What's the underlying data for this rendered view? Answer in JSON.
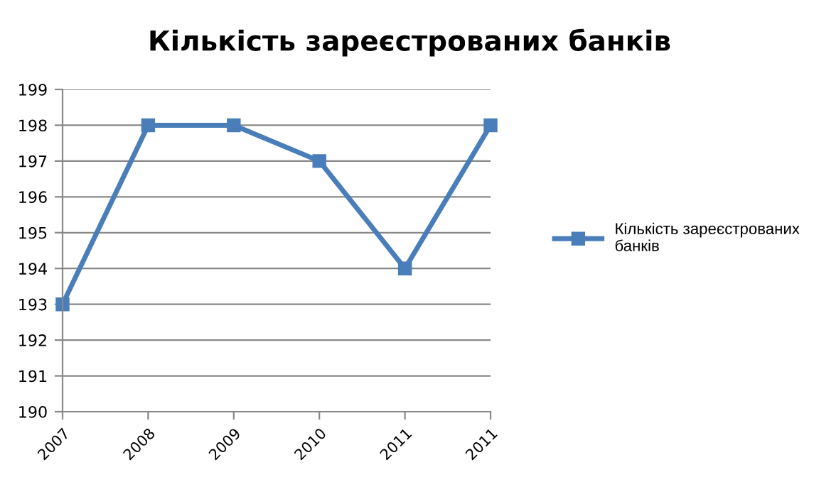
{
  "chart_data": {
    "type": "line",
    "title": "Кількість зареєстрованих банків",
    "categories": [
      "2007",
      "2008",
      "2009",
      "2010",
      "2011",
      "2011"
    ],
    "series": [
      {
        "name": "Кількість зареєстрованих банків",
        "color": "#4a7ebb",
        "values": [
          193,
          198,
          198,
          197,
          194,
          198
        ]
      }
    ],
    "ylim": [
      190,
      199
    ],
    "yticks": [
      190,
      191,
      192,
      193,
      194,
      195,
      196,
      197,
      198,
      199
    ],
    "grid": "y",
    "legend": "right",
    "marker": "square",
    "line_style": "solid"
  }
}
